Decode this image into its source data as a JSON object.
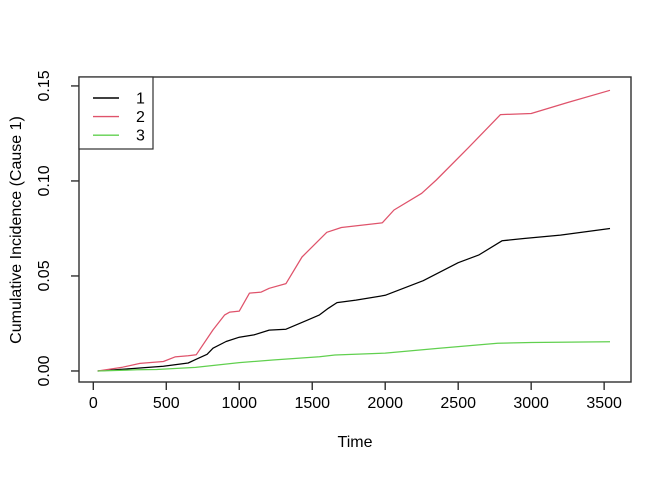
{
  "window": {
    "background": "#ffffff",
    "frame_color": "#2f2f2f",
    "text_color": "#000000"
  },
  "chart_data": {
    "type": "line",
    "title": "",
    "xlabel": "Time",
    "ylabel": "Cumulative Incidence (Cause 1)",
    "grid": false,
    "x_range": [
      -98,
      3684
    ],
    "y_range": [
      -0.0058,
      0.1547
    ],
    "x_ticks": {
      "values": [
        0,
        500,
        1000,
        1500,
        2000,
        2500,
        3000,
        3500
      ],
      "labels": [
        "0",
        "500",
        "1000",
        "1500",
        "2000",
        "2500",
        "3000",
        "3500"
      ]
    },
    "y_ticks": {
      "values": [
        0.0,
        0.05,
        0.1,
        0.15
      ],
      "labels": [
        "0.00",
        "0.05",
        "0.10",
        "0.15"
      ]
    },
    "legend": {
      "position": "topleft",
      "entries": [
        {
          "label": "1",
          "color": "#000000"
        },
        {
          "label": "2",
          "color": "#DF536B"
        },
        {
          "label": "3",
          "color": "#61D04F"
        }
      ]
    },
    "series": [
      {
        "name": "1",
        "color": "#000000",
        "points": [
          [
            30,
            0.0
          ],
          [
            250,
            0.0012
          ],
          [
            480,
            0.0025
          ],
          [
            650,
            0.0042
          ],
          [
            700,
            0.006
          ],
          [
            780,
            0.0088
          ],
          [
            820,
            0.012
          ],
          [
            910,
            0.0155
          ],
          [
            1000,
            0.0178
          ],
          [
            1100,
            0.019
          ],
          [
            1205,
            0.0215
          ],
          [
            1320,
            0.022
          ],
          [
            1460,
            0.0265
          ],
          [
            1550,
            0.0295
          ],
          [
            1610,
            0.033
          ],
          [
            1670,
            0.036
          ],
          [
            1800,
            0.0373
          ],
          [
            2000,
            0.0398
          ],
          [
            2260,
            0.0475
          ],
          [
            2500,
            0.057
          ],
          [
            2640,
            0.061
          ],
          [
            2800,
            0.0685
          ],
          [
            2950,
            0.0697
          ],
          [
            3200,
            0.0715
          ],
          [
            3540,
            0.075
          ]
        ]
      },
      {
        "name": "2",
        "color": "#DF536B",
        "points": [
          [
            30,
            0.0
          ],
          [
            200,
            0.002
          ],
          [
            320,
            0.004
          ],
          [
            480,
            0.005
          ],
          [
            560,
            0.0074
          ],
          [
            650,
            0.008
          ],
          [
            705,
            0.0085
          ],
          [
            820,
            0.0216
          ],
          [
            900,
            0.0295
          ],
          [
            935,
            0.031
          ],
          [
            1000,
            0.0315
          ],
          [
            1070,
            0.041
          ],
          [
            1150,
            0.0415
          ],
          [
            1205,
            0.0435
          ],
          [
            1320,
            0.046
          ],
          [
            1430,
            0.06
          ],
          [
            1600,
            0.073
          ],
          [
            1700,
            0.0755
          ],
          [
            1980,
            0.078
          ],
          [
            2060,
            0.0847
          ],
          [
            2250,
            0.0935
          ],
          [
            2350,
            0.1005
          ],
          [
            2570,
            0.1175
          ],
          [
            2790,
            0.1349
          ],
          [
            3000,
            0.1355
          ],
          [
            3250,
            0.1413
          ],
          [
            3540,
            0.1477
          ]
        ]
      },
      {
        "name": "3",
        "color": "#61D04F",
        "points": [
          [
            30,
            0.0
          ],
          [
            300,
            0.0006
          ],
          [
            434,
            0.0008
          ],
          [
            700,
            0.0019
          ],
          [
            1000,
            0.0044
          ],
          [
            1230,
            0.0058
          ],
          [
            1550,
            0.0075
          ],
          [
            1655,
            0.0084
          ],
          [
            2000,
            0.0094
          ],
          [
            2360,
            0.0119
          ],
          [
            2770,
            0.0146
          ],
          [
            3000,
            0.015
          ],
          [
            3540,
            0.0154
          ]
        ]
      }
    ]
  }
}
